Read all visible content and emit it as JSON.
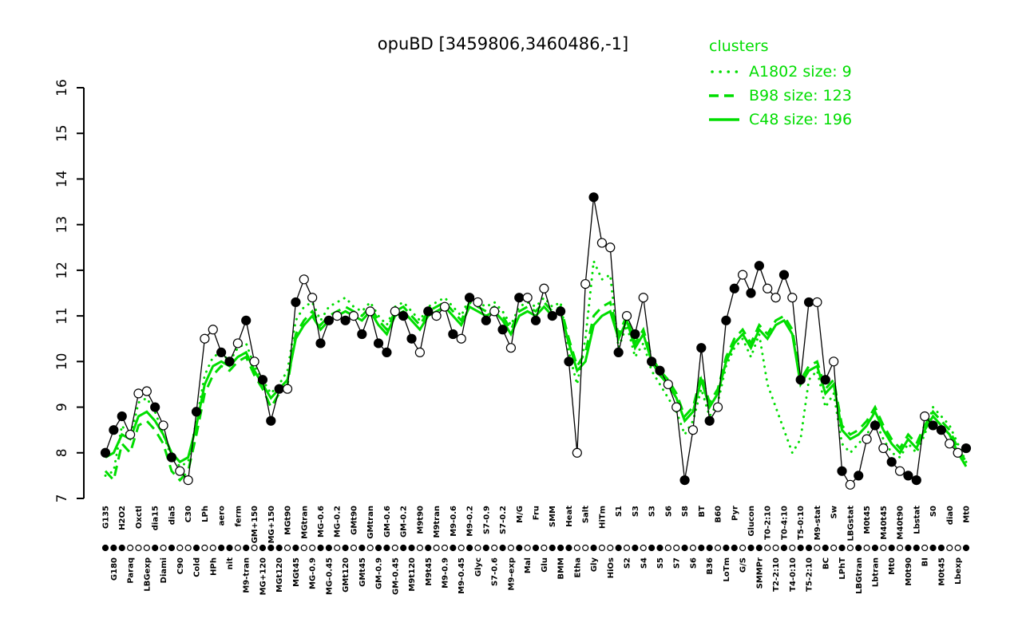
{
  "chart_data": {
    "type": "line",
    "title": "opuBD [3459806,3460486,-1]",
    "xlabel": "",
    "ylabel": "",
    "ylim": [
      7,
      16
    ],
    "yticks": [
      7,
      8,
      9,
      10,
      11,
      12,
      13,
      14,
      15,
      16
    ],
    "grid": false,
    "legend": {
      "title": "clusters",
      "position": "top-right",
      "color": "#00dd00",
      "entries": [
        {
          "label": "A1802 size: 9",
          "style": "dotted"
        },
        {
          "label": "B98 size: 123",
          "style": "dashed"
        },
        {
          "label": "C48 size: 196",
          "style": "solid"
        }
      ]
    },
    "categories": [
      "G135",
      "G180",
      "H2O2",
      "Paraq",
      "Oxctl",
      "LBGexp",
      "dia15",
      "Diami",
      "dia5",
      "C90",
      "C30",
      "Cold",
      "LPh",
      "HPh",
      "aero",
      "nit",
      "ferm",
      "M9-tran",
      "GM+150",
      "MG+120",
      "MG+150",
      "MGt120",
      "MGt90",
      "MGt45",
      "MGtran",
      "MG-0.9",
      "MG-0.6",
      "MG-0.45",
      "MG-0.2",
      "GMt120",
      "GMt90",
      "GMt45",
      "GMtran",
      "GM-0.9",
      "GM-0.6",
      "GM-0.45",
      "GM-0.2",
      "M9t120",
      "M9t90",
      "M9t45",
      "M9tran",
      "M9-0.9",
      "M9-0.6",
      "M9-0.45",
      "M9-0.2",
      "Glyc",
      "S7-0.9",
      "S7-0.6",
      "S7-0.2",
      "M9-exp",
      "M/G",
      "Mal",
      "Fru",
      "Glu",
      "SMM",
      "BMM",
      "Heat",
      "Etha",
      "Salt",
      "Gly",
      "HiTm",
      "HiOs",
      "S1",
      "S2",
      "S3",
      "S4",
      "S3",
      "S5",
      "S6",
      "S7",
      "S8",
      "S6",
      "BT",
      "B36",
      "B60",
      "LoTm",
      "Pyr",
      "G/S",
      "Glucon",
      "SMMPr",
      "T0-2:10",
      "T2-2:10",
      "T0-4:10",
      "T4-0:10",
      "T5-0:10",
      "T5-2:10",
      "M9-stat",
      "BC",
      "Sw",
      "LPhT",
      "LBGstat",
      "LBGtran",
      "M0t45",
      "Lbtran",
      "M40t45",
      "Mt0",
      "M40t90",
      "M0t90",
      "Lbstat",
      "BI",
      "S0",
      "M0t45",
      "dia0",
      "Lbexp",
      "Mt0"
    ],
    "profile": {
      "marker": "circle",
      "color": "#000000",
      "values": [
        8.0,
        8.5,
        8.8,
        8.4,
        9.3,
        9.35,
        9.0,
        8.6,
        7.9,
        7.6,
        7.4,
        8.9,
        10.5,
        10.7,
        10.2,
        10.0,
        10.4,
        10.9,
        10.0,
        9.6,
        8.7,
        9.4,
        9.4,
        11.3,
        11.8,
        11.4,
        10.4,
        10.9,
        11.0,
        10.9,
        11.0,
        10.6,
        11.1,
        10.4,
        10.2,
        11.1,
        11.0,
        10.5,
        10.2,
        11.1,
        11.0,
        11.2,
        10.6,
        10.5,
        11.4,
        11.3,
        10.9,
        11.1,
        10.7,
        10.3,
        11.4,
        11.4,
        10.9,
        11.6,
        11.0,
        11.1,
        10.0,
        8.0,
        11.7,
        13.6,
        12.6,
        12.5,
        10.2,
        11.0,
        10.6,
        11.4,
        10.0,
        9.8,
        9.5,
        9.0,
        7.4,
        8.5,
        10.3,
        8.7,
        9.0,
        10.9,
        11.6,
        11.9,
        11.5,
        12.1,
        11.6,
        11.4,
        11.9,
        11.4,
        9.6,
        11.3,
        11.3,
        9.6,
        10.0,
        7.6,
        7.3,
        7.5,
        8.3,
        8.6,
        8.1,
        7.8,
        7.6,
        7.5,
        7.4,
        8.8,
        8.6,
        8.5,
        8.2,
        8.0,
        8.1
      ],
      "point_filled": [
        1,
        1,
        1,
        0,
        0,
        0,
        1,
        0,
        1,
        0,
        0,
        1,
        0,
        0,
        1,
        1,
        0,
        1,
        0,
        1,
        1,
        1,
        0,
        1,
        0,
        0,
        1,
        1,
        0,
        1,
        0,
        1,
        0,
        1,
        1,
        0,
        1,
        1,
        0,
        1,
        0,
        0,
        1,
        0,
        1,
        0,
        1,
        0,
        1,
        0,
        1,
        0,
        1,
        0,
        1,
        1,
        1,
        0,
        0,
        1,
        0,
        0,
        1,
        0,
        1,
        0,
        1,
        1,
        0,
        0,
        1,
        0,
        1,
        1,
        0,
        1,
        1,
        0,
        1,
        1,
        0,
        0,
        1,
        0,
        1,
        1,
        0,
        1,
        0,
        1,
        0,
        1,
        0,
        1,
        0,
        1,
        0,
        1,
        1,
        0,
        1,
        1,
        0,
        0,
        1
      ]
    },
    "series": [
      {
        "name": "A1802",
        "label": "A1802 size: 9",
        "size": 9,
        "style": "dotted",
        "color": "#00dd00",
        "values": [
          7.5,
          7.6,
          8.6,
          8.3,
          9.1,
          9.2,
          8.9,
          8.4,
          7.9,
          7.7,
          7.8,
          8.7,
          9.7,
          10.1,
          10.2,
          10.0,
          10.3,
          10.4,
          9.9,
          9.6,
          9.3,
          9.5,
          9.8,
          10.9,
          11.2,
          11.3,
          10.9,
          11.2,
          11.3,
          11.4,
          11.2,
          11.1,
          11.3,
          11.0,
          10.8,
          11.2,
          11.3,
          11.1,
          10.9,
          11.2,
          11.3,
          11.4,
          11.2,
          11.0,
          11.4,
          11.3,
          11.2,
          11.3,
          11.1,
          10.8,
          11.2,
          11.3,
          11.2,
          11.4,
          11.2,
          11.3,
          10.2,
          9.5,
          10.5,
          12.2,
          11.8,
          11.9,
          10.3,
          10.8,
          10.1,
          10.4,
          9.8,
          9.5,
          9.2,
          8.9,
          8.4,
          8.7,
          9.4,
          8.8,
          9.1,
          9.9,
          10.3,
          10.5,
          10.1,
          10.6,
          9.5,
          9.0,
          8.5,
          8.0,
          8.3,
          9.6,
          9.8,
          9.0,
          9.3,
          8.2,
          8.0,
          8.2,
          8.4,
          8.7,
          8.3,
          8.0,
          7.9,
          8.2,
          8.0,
          8.4,
          9.0,
          8.8,
          8.6,
          8.2,
          7.8
        ]
      },
      {
        "name": "B98",
        "label": "B98 size: 123",
        "size": 123,
        "style": "dashed",
        "color": "#00dd00",
        "values": [
          7.6,
          7.4,
          8.2,
          8.0,
          8.6,
          8.7,
          8.5,
          8.2,
          7.6,
          7.4,
          7.6,
          8.4,
          9.3,
          9.7,
          9.9,
          9.8,
          10.0,
          10.1,
          9.7,
          9.4,
          9.0,
          9.3,
          9.5,
          10.6,
          10.9,
          11.1,
          10.8,
          11.0,
          11.1,
          11.2,
          11.1,
          11.0,
          11.2,
          10.9,
          10.7,
          11.1,
          11.2,
          11.0,
          10.8,
          11.1,
          11.2,
          11.3,
          11.1,
          10.9,
          11.3,
          11.2,
          11.1,
          11.2,
          11.0,
          10.7,
          11.1,
          11.2,
          11.1,
          11.3,
          11.1,
          11.2,
          10.5,
          9.9,
          10.2,
          11.0,
          11.2,
          11.3,
          10.6,
          11.0,
          10.4,
          10.7,
          10.1,
          9.8,
          9.6,
          9.3,
          8.8,
          9.0,
          9.7,
          9.1,
          9.4,
          10.1,
          10.5,
          10.7,
          10.4,
          10.8,
          10.6,
          10.9,
          11.0,
          10.7,
          9.6,
          9.9,
          10.0,
          9.4,
          9.6,
          8.6,
          8.4,
          8.5,
          8.7,
          9.0,
          8.6,
          8.3,
          8.1,
          8.4,
          8.2,
          8.6,
          8.9,
          8.7,
          8.5,
          8.1,
          7.8
        ]
      },
      {
        "name": "C48",
        "label": "C48 size: 196",
        "size": 196,
        "style": "solid",
        "color": "#00dd00",
        "values": [
          7.9,
          8.0,
          8.4,
          8.3,
          8.8,
          8.9,
          8.7,
          8.4,
          8.0,
          7.8,
          7.9,
          8.6,
          9.5,
          9.9,
          10.0,
          9.9,
          10.1,
          10.2,
          9.8,
          9.5,
          9.2,
          9.4,
          9.6,
          10.5,
          10.8,
          11.0,
          10.7,
          10.9,
          11.0,
          11.1,
          11.0,
          10.9,
          11.1,
          10.8,
          10.6,
          11.0,
          11.1,
          10.9,
          10.7,
          11.0,
          11.1,
          11.2,
          11.0,
          10.8,
          11.2,
          11.1,
          11.0,
          11.1,
          10.9,
          10.6,
          11.0,
          11.1,
          11.0,
          11.2,
          11.0,
          11.1,
          10.4,
          9.8,
          10.0,
          10.8,
          11.0,
          11.1,
          10.5,
          10.9,
          10.3,
          10.6,
          10.0,
          9.7,
          9.5,
          9.2,
          8.7,
          8.9,
          9.6,
          9.0,
          9.3,
          10.0,
          10.4,
          10.6,
          10.3,
          10.7,
          10.5,
          10.8,
          10.9,
          10.6,
          9.5,
          9.8,
          9.9,
          9.3,
          9.5,
          8.5,
          8.3,
          8.4,
          8.6,
          8.9,
          8.5,
          8.2,
          8.0,
          8.3,
          8.1,
          8.5,
          8.8,
          8.6,
          8.4,
          8.0,
          7.7
        ]
      }
    ]
  }
}
